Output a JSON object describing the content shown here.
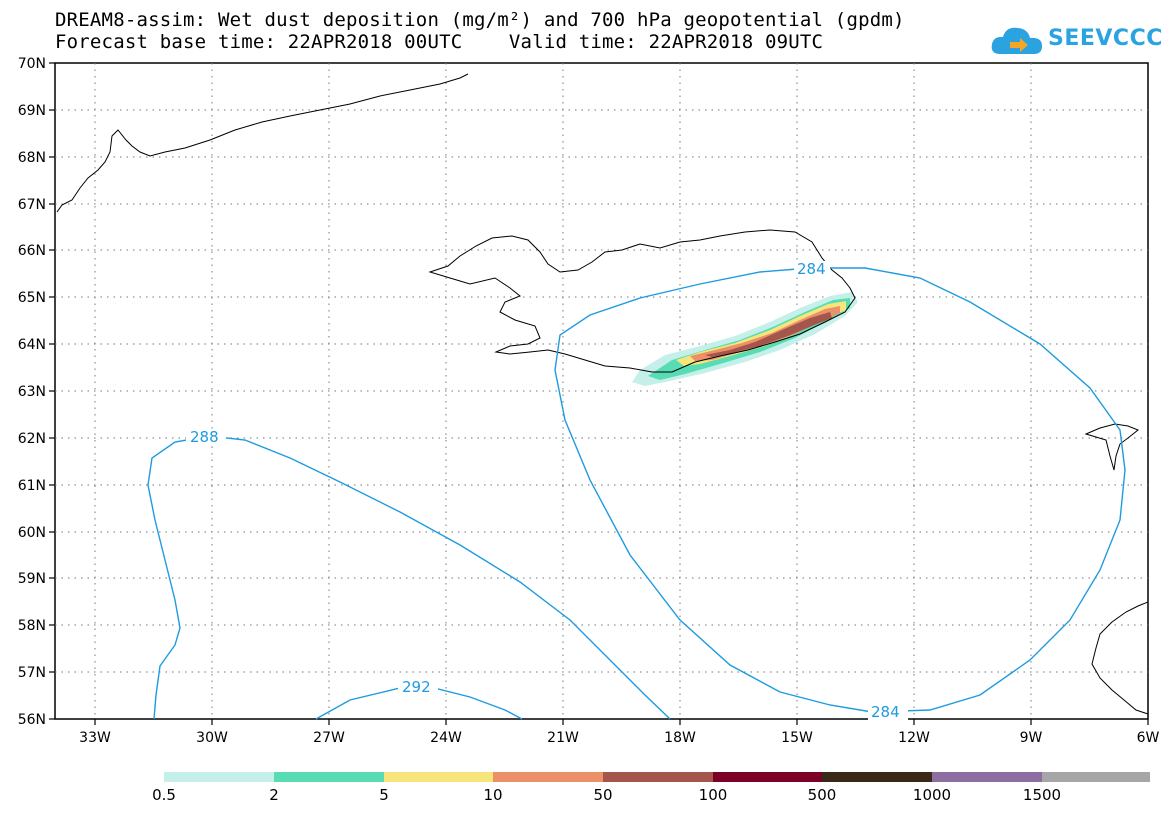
{
  "title": {
    "line1": "DREAM8-assim: Wet dust deposition (mg/m²) and 700 hPa geopotential (gpdm)",
    "line2": "Forecast base time: 22APR2018 00UTC    Valid time: 22APR2018 09UTC"
  },
  "logo": {
    "text": "SEEVCCC",
    "icon": "cloud-arrow-icon",
    "color": "#2aa3e0"
  },
  "axes": {
    "lat_labels": [
      "70N",
      "69N",
      "68N",
      "67N",
      "66N",
      "65N",
      "64N",
      "63N",
      "62N",
      "61N",
      "60N",
      "59N",
      "58N",
      "57N",
      "56N"
    ],
    "lon_labels": [
      "33W",
      "30W",
      "27W",
      "24W",
      "21W",
      "18W",
      "15W",
      "12W",
      "9W",
      "6W"
    ]
  },
  "contours": {
    "color": "#1e9be0",
    "labels": [
      "288",
      "292",
      "284",
      "284"
    ]
  },
  "colorbar": {
    "colors": [
      "#c5f0ea",
      "#57dcb4",
      "#f5e57a",
      "#ec906a",
      "#a4554c",
      "#7c0026",
      "#3c2817",
      "#8c6ea0",
      "#a6a6a6"
    ],
    "ticks": [
      "0.5",
      "2",
      "5",
      "10",
      "50",
      "100",
      "500",
      "1000",
      "1500"
    ]
  },
  "dust_colors": [
    "#c5f0ea",
    "#57dcb4",
    "#f5e57a",
    "#ec906a",
    "#a4554c"
  ]
}
